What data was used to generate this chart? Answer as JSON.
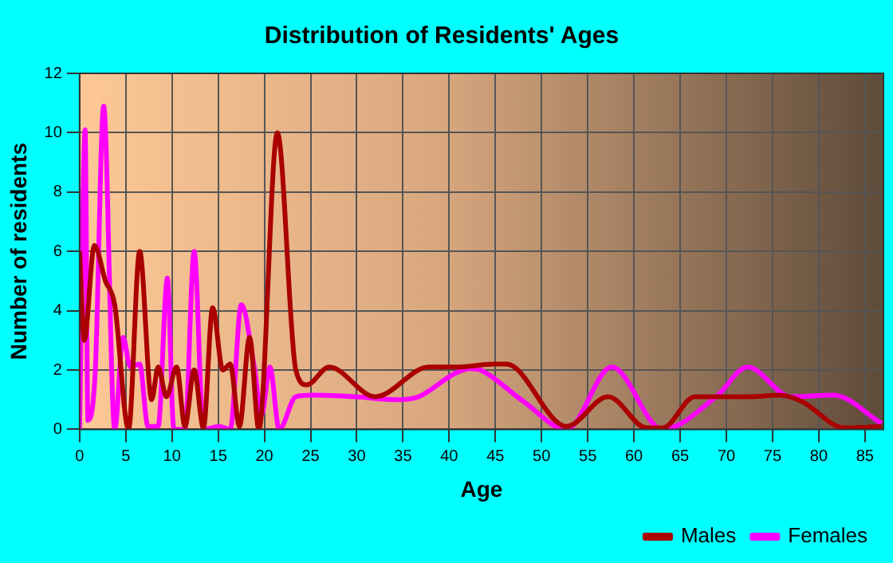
{
  "chart_data": {
    "type": "line",
    "title": "Distribution of Residents' Ages",
    "xlabel": "Age",
    "ylabel": "Number of residents",
    "xlim": [
      0,
      87
    ],
    "xticks": [
      0,
      5,
      10,
      15,
      20,
      25,
      30,
      35,
      40,
      45,
      50,
      55,
      60,
      65,
      70,
      75,
      80,
      85
    ],
    "ylim": [
      0,
      12
    ],
    "yticks": [
      0,
      2,
      4,
      6,
      8,
      10,
      12
    ],
    "grid": true,
    "legend": "bottom right",
    "marker": "none",
    "line_style": "solid",
    "series": [
      {
        "name": "Males",
        "color": "#aa0000",
        "x": [
          0,
          0.5,
          1.6,
          2.8,
          3.8,
          5.3,
          6.5,
          7.8,
          8.5,
          9.4,
          10.5,
          11.4,
          12.4,
          13.4,
          14.4,
          15.5,
          16.3,
          17.3,
          18.4,
          19.4,
          21.4,
          23.4,
          24.6,
          27,
          32,
          37.8,
          40.7,
          45,
          46.2,
          52.7,
          57.2,
          61.4,
          63.1,
          66.6,
          72.4,
          75.8,
          78.1,
          82.8,
          86.8
        ],
        "values": [
          6,
          3,
          6.2,
          5,
          4.2,
          0,
          6,
          1,
          2.1,
          1.1,
          2.1,
          0.1,
          2,
          0.05,
          4.1,
          2,
          2.2,
          0.1,
          3.1,
          0,
          10,
          2,
          1.5,
          2.1,
          1.1,
          2.1,
          2.1,
          2.2,
          2.2,
          0.1,
          1.1,
          0.05,
          0.05,
          1.1,
          1.1,
          1.15,
          0.95,
          0.05,
          0.1
        ]
      },
      {
        "name": "Females",
        "color": "#ff00ff",
        "x": [
          0,
          0.6,
          0.9,
          1.7,
          2.6,
          3.8,
          4.7,
          5.5,
          6.5,
          7.4,
          8.5,
          9.5,
          10.2,
          11.4,
          12.4,
          13.4,
          15.1,
          16.3,
          17.5,
          18.9,
          19.7,
          20.6,
          21.6,
          23.4,
          25.2,
          29.8,
          34.4,
          36.7,
          40.7,
          42.3,
          43.4,
          48,
          52.7,
          57.6,
          63.1,
          66.6,
          68.9,
          72.3,
          77,
          81.6,
          86.8
        ],
        "values": [
          0,
          10.1,
          0.3,
          2,
          10.9,
          0,
          3.1,
          2.1,
          2.2,
          0.1,
          0.1,
          5.1,
          0,
          0,
          6,
          0,
          0.1,
          0,
          4.2,
          2.1,
          0.5,
          2.1,
          0,
          1.1,
          1.15,
          1.1,
          1,
          1.1,
          1.9,
          2.05,
          2,
          0.95,
          0,
          2.1,
          0,
          null,
          1.1,
          2.1,
          1.1,
          1.15,
          0.2
        ]
      }
    ]
  }
}
